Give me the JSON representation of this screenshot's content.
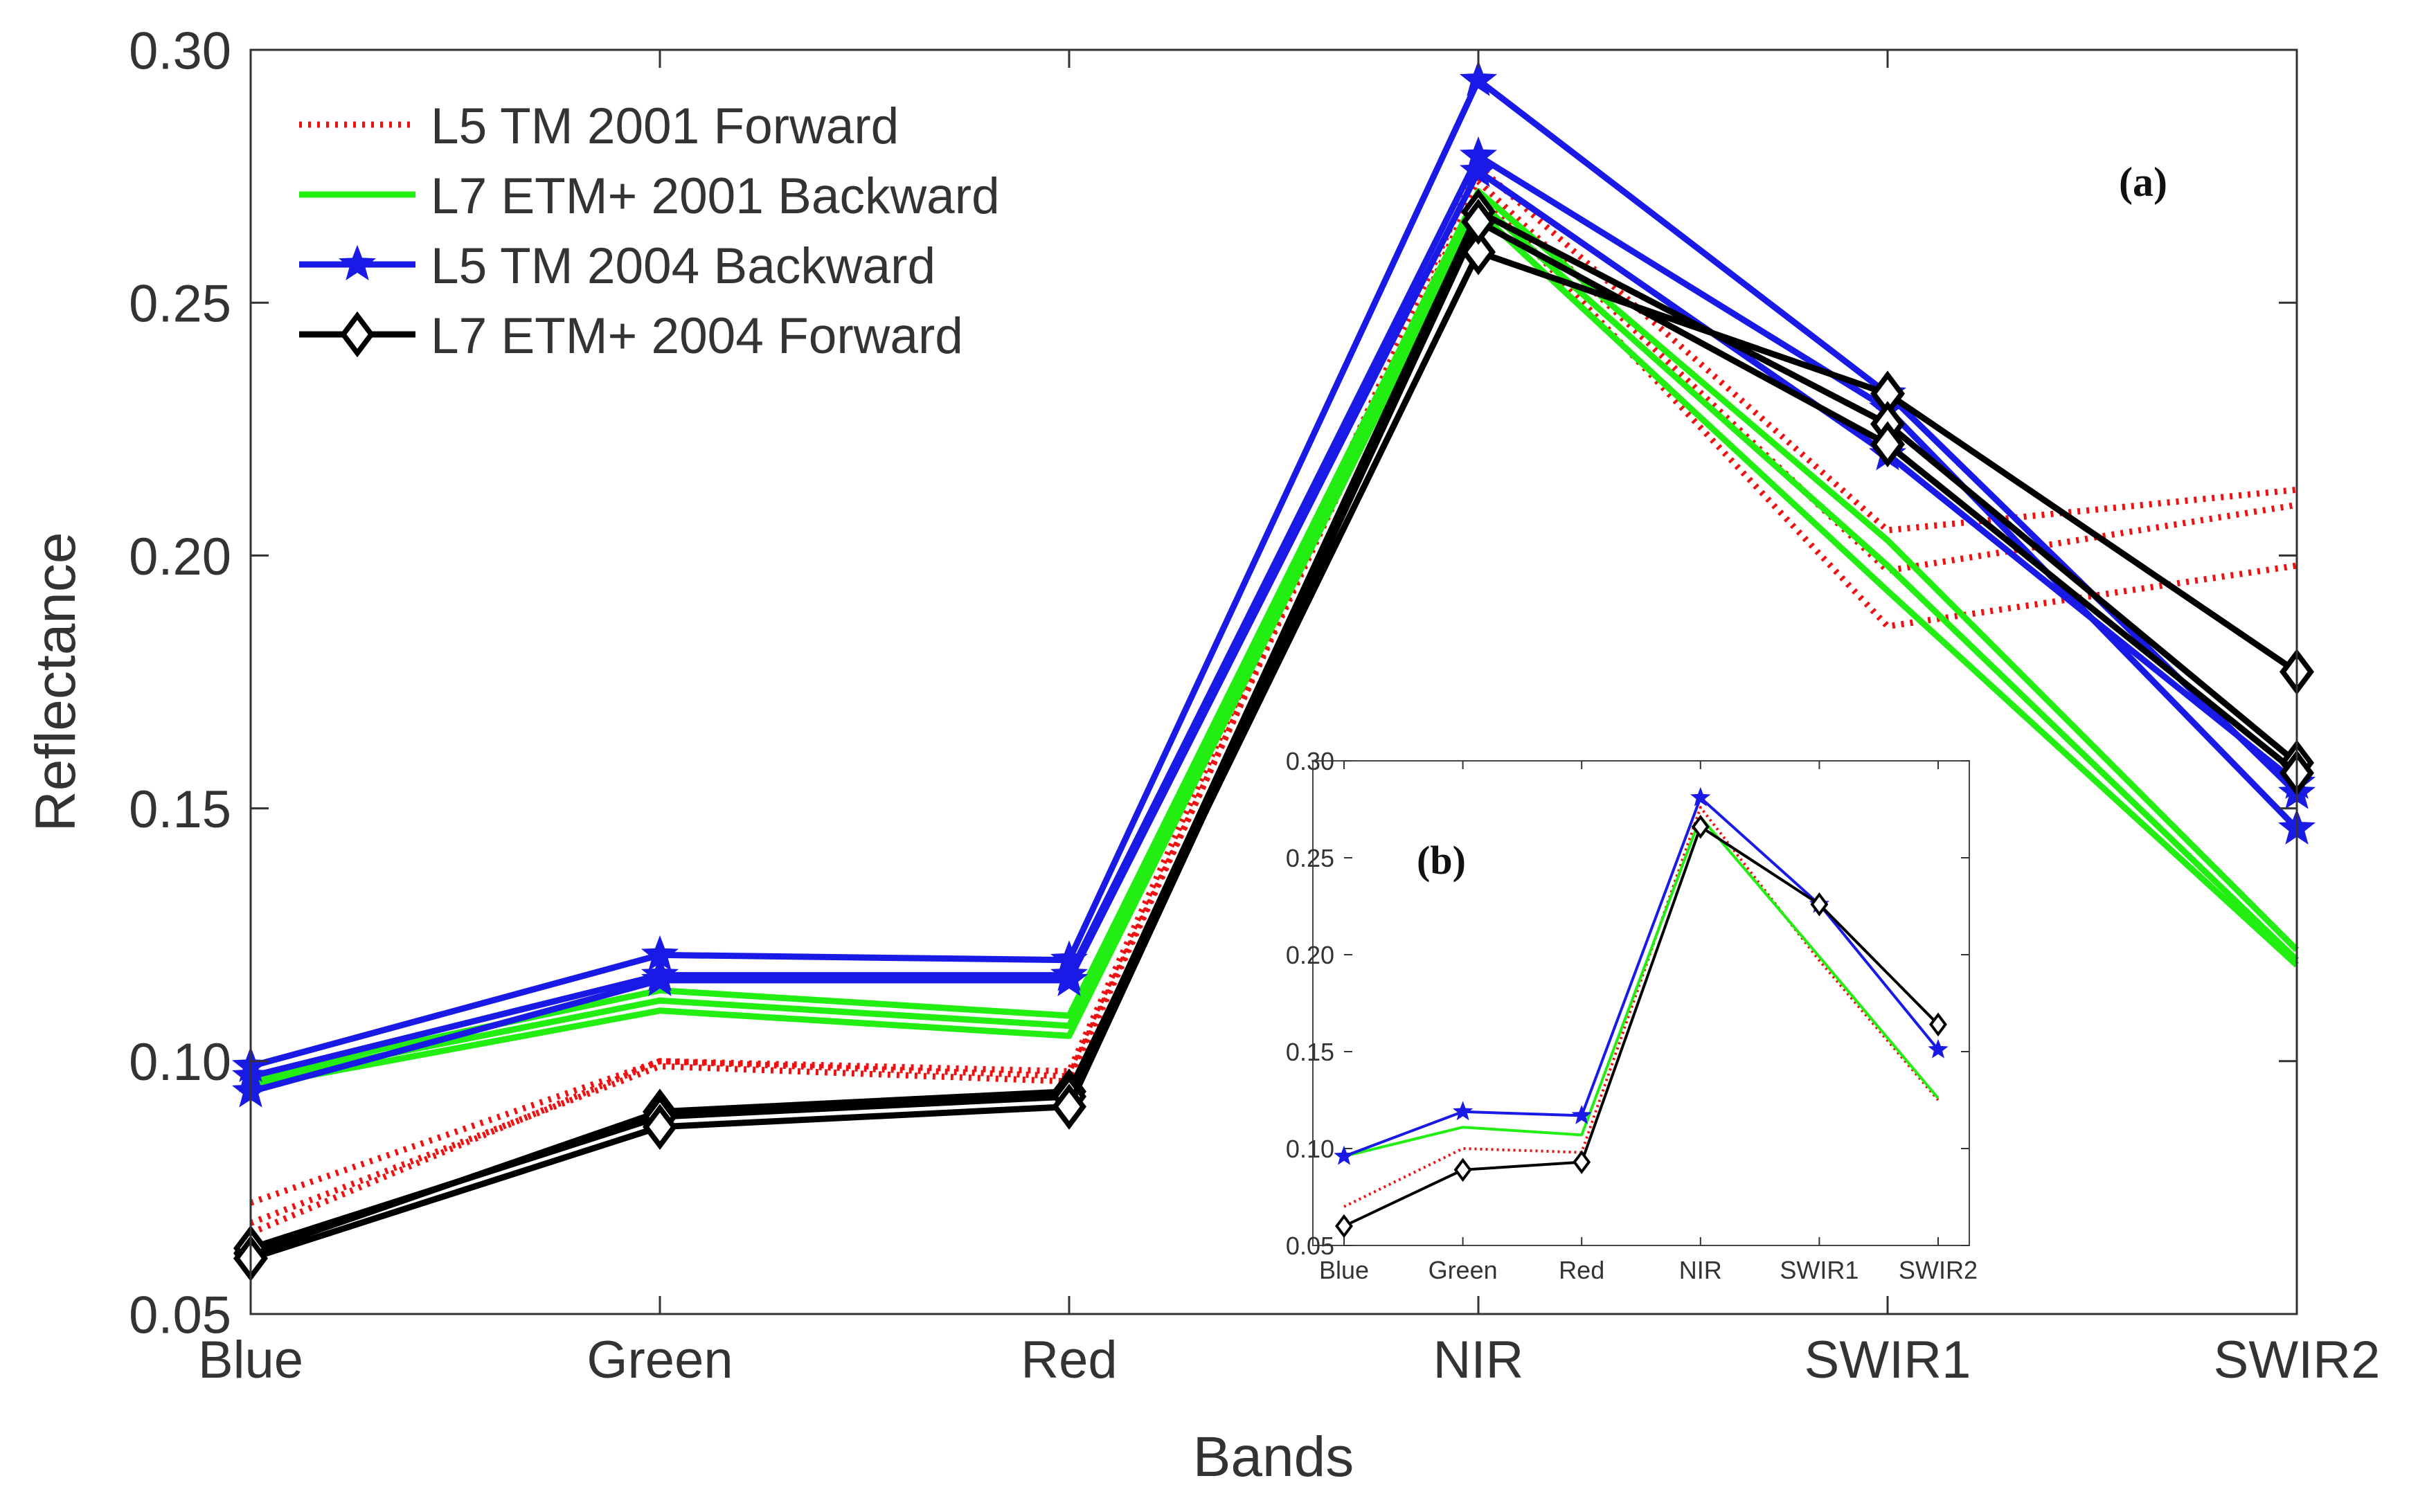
{
  "chart_data": [
    {
      "id": "a",
      "type": "line",
      "panel_label": "(a)",
      "xlabel": "Bands",
      "ylabel": "Reflectance",
      "categories": [
        "Blue",
        "Green",
        "Red",
        "NIR",
        "SWIR1",
        "SWIR2"
      ],
      "ylim": [
        0.05,
        0.3
      ],
      "yticks": [
        "0.05",
        "0.10",
        "0.15",
        "0.20",
        "0.25",
        "0.30"
      ],
      "ytick_values": [
        0.05,
        0.1,
        0.15,
        0.2,
        0.25,
        0.3
      ],
      "legend_position": "top-left",
      "series": [
        {
          "name": "L5 TM 2001 Forward",
          "color": "#ee1111",
          "style": "dotted",
          "marker": "none",
          "lines": [
            [
              0.072,
              0.1,
              0.098,
              0.277,
              0.205,
              0.213
            ],
            [
              0.068,
              0.099,
              0.096,
              0.274,
              0.197,
              0.21
            ],
            [
              0.066,
              0.1,
              0.097,
              0.272,
              0.186,
              0.198
            ]
          ]
        },
        {
          "name": "L7 ETM+ 2001 Backward",
          "color": "#22ee11",
          "style": "solid",
          "marker": "none",
          "lines": [
            [
              0.097,
              0.114,
              0.109,
              0.272,
              0.203,
              0.122
            ],
            [
              0.096,
              0.112,
              0.107,
              0.27,
              0.198,
              0.12
            ],
            [
              0.095,
              0.11,
              0.105,
              0.268,
              0.193,
              0.119
            ]
          ]
        },
        {
          "name": "L5 TM 2004 Backward",
          "color": "#1a1ae6",
          "style": "solid",
          "marker": "star",
          "lines": [
            [
              0.099,
              0.121,
              0.12,
              0.294,
              0.232,
              0.153
            ],
            [
              0.097,
              0.117,
              0.117,
              0.279,
              0.229,
              0.146
            ],
            [
              0.094,
              0.116,
              0.116,
              0.276,
              0.22,
              0.155
            ]
          ]
        },
        {
          "name": "L7 ETM+ 2004 Forward",
          "color": "#000000",
          "style": "solid",
          "marker": "diamond",
          "lines": [
            [
              0.062,
              0.09,
              0.094,
              0.26,
              0.232,
              0.177
            ],
            [
              0.063,
              0.089,
              0.093,
              0.268,
              0.226,
              0.159
            ],
            [
              0.061,
              0.087,
              0.091,
              0.266,
              0.222,
              0.157
            ]
          ]
        }
      ]
    },
    {
      "id": "b",
      "type": "line",
      "panel_label": "(b)",
      "categories": [
        "Blue",
        "Green",
        "Red",
        "NIR",
        "SWIR1",
        "SWIR2"
      ],
      "ylim": [
        0.05,
        0.3
      ],
      "yticks": [
        "0.05",
        "0.10",
        "0.15",
        "0.20",
        "0.25",
        "0.30"
      ],
      "ytick_values": [
        0.05,
        0.1,
        0.15,
        0.2,
        0.25,
        0.3
      ],
      "series": [
        {
          "name": "L5 TM 2001 Forward",
          "color": "#ee1111",
          "style": "dotted",
          "marker": "none",
          "lines": [
            [
              0.07,
              0.1,
              0.098,
              0.276,
              0.197,
              0.125
            ]
          ]
        },
        {
          "name": "L7 ETM+ 2001 Backward",
          "color": "#22ee11",
          "style": "solid",
          "marker": "none",
          "lines": [
            [
              0.096,
              0.111,
              0.107,
              0.271,
              0.199,
              0.126
            ]
          ]
        },
        {
          "name": "L5 TM 2004 Backward",
          "color": "#1a1ae6",
          "style": "solid",
          "marker": "star",
          "lines": [
            [
              0.096,
              0.119,
              0.117,
              0.281,
              0.226,
              0.151
            ]
          ]
        },
        {
          "name": "L7 ETM+ 2004 Forward",
          "color": "#000000",
          "style": "solid",
          "marker": "diamond",
          "lines": [
            [
              0.06,
              0.089,
              0.093,
              0.266,
              0.226,
              0.164
            ]
          ]
        }
      ]
    }
  ]
}
